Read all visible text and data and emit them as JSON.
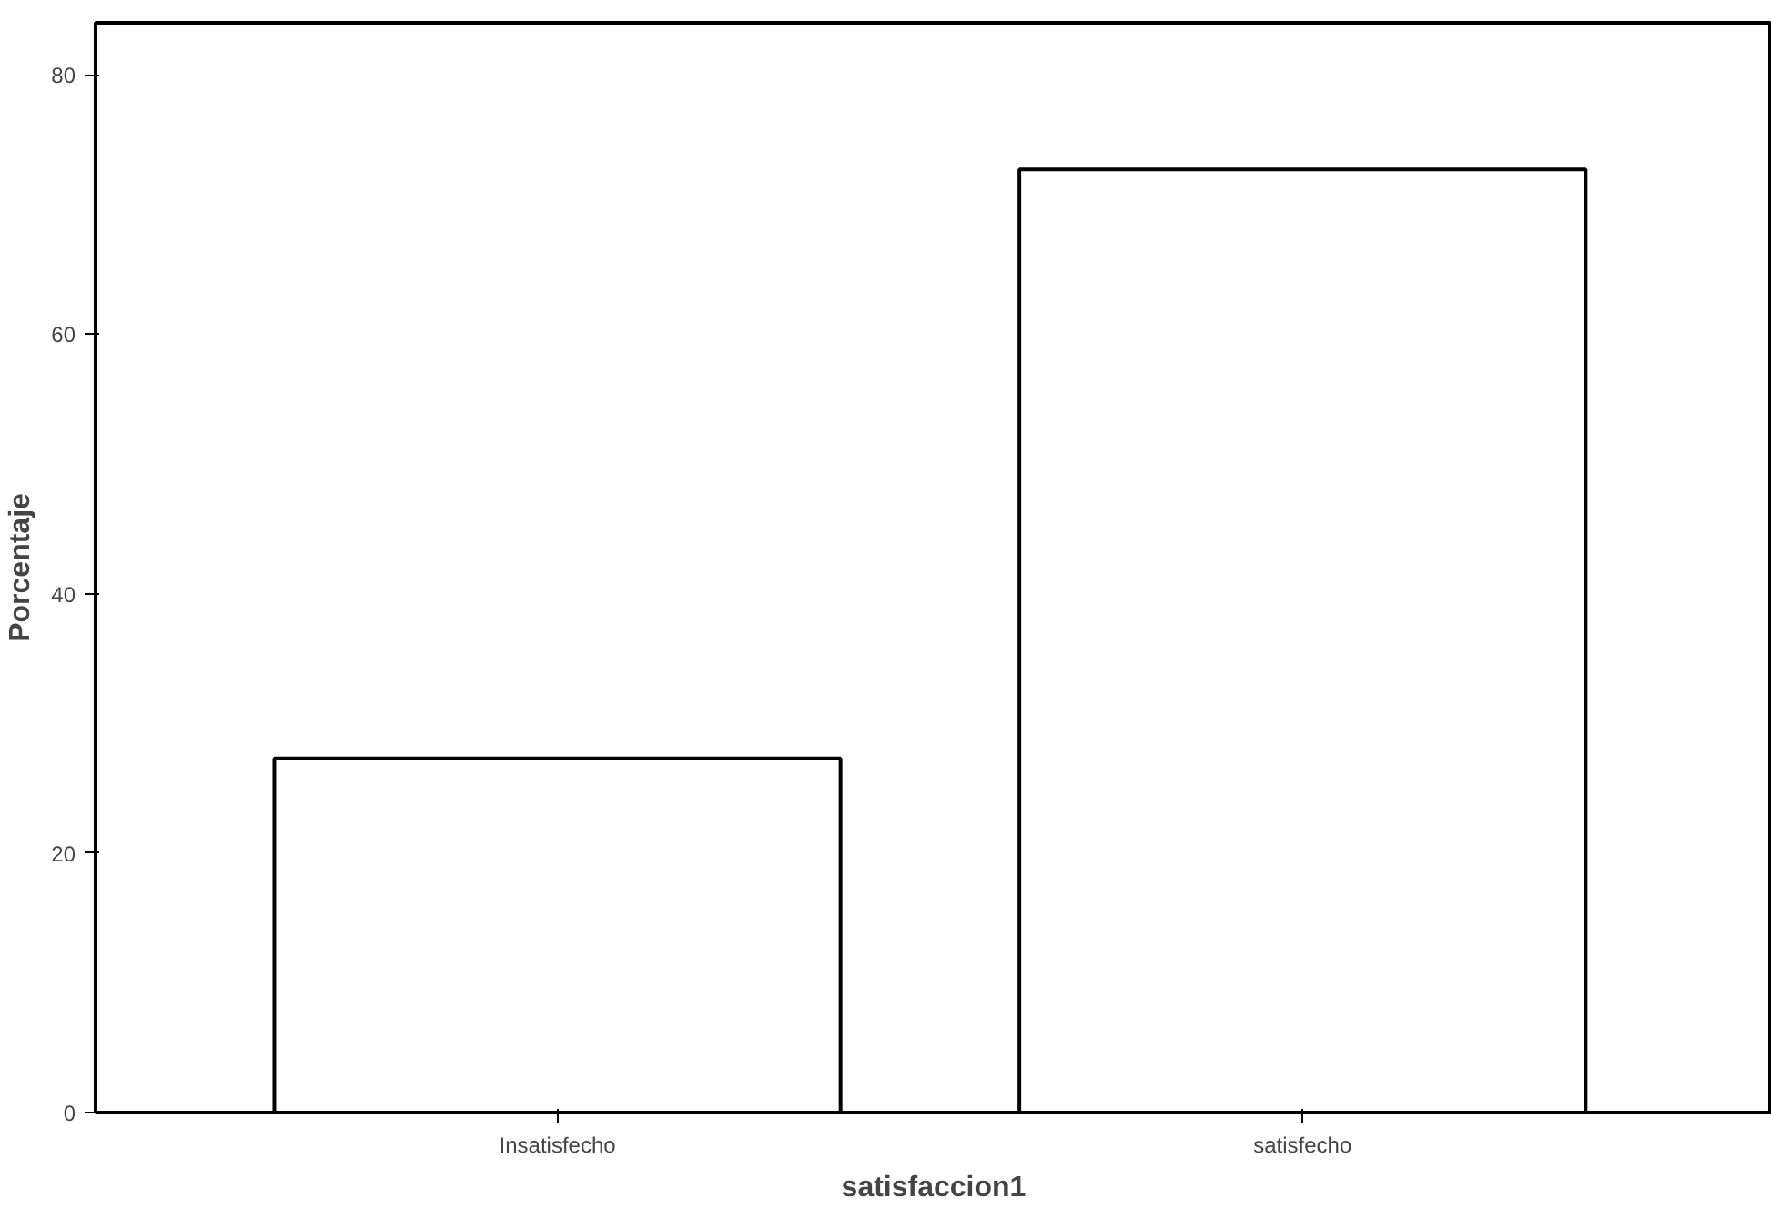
{
  "chart_data": {
    "type": "bar",
    "xlabel": "satisfaccion1",
    "ylabel": "Porcentaje",
    "categories": [
      "Insatisfecho",
      "satisfecho"
    ],
    "values": [
      27.3,
      72.7
    ],
    "color": "#ffffff",
    "ylim": [
      0,
      84
    ],
    "yticks": [
      0,
      20,
      40,
      60,
      80
    ],
    "grid": false
  }
}
